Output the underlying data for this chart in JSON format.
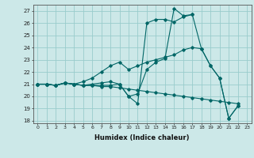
{
  "xlabel": "Humidex (Indice chaleur)",
  "bg_color": "#cce8e8",
  "grid_color": "#99cccc",
  "line_color": "#006666",
  "xlim": [
    -0.5,
    23.5
  ],
  "ylim": [
    17.8,
    27.5
  ],
  "xticks": [
    0,
    1,
    2,
    3,
    4,
    5,
    6,
    7,
    8,
    9,
    10,
    11,
    12,
    13,
    14,
    15,
    16,
    17,
    18,
    19,
    20,
    21,
    22,
    23
  ],
  "yticks": [
    18,
    19,
    20,
    21,
    22,
    23,
    24,
    25,
    26,
    27
  ],
  "series": [
    [
      21.0,
      21.0,
      20.9,
      21.1,
      21.0,
      20.9,
      20.9,
      20.9,
      20.9,
      21.0,
      20.0,
      19.4,
      26.0,
      26.3,
      26.3,
      26.1,
      26.5,
      26.7,
      23.9,
      22.5,
      21.5,
      18.2,
      19.2,
      null
    ],
    [
      21.0,
      21.0,
      20.9,
      21.1,
      21.0,
      21.2,
      21.5,
      22.0,
      22.5,
      22.8,
      22.2,
      22.5,
      22.8,
      23.0,
      23.2,
      23.4,
      23.8,
      24.0,
      23.9,
      22.5,
      21.5,
      18.2,
      19.2,
      null
    ],
    [
      21.0,
      21.0,
      20.9,
      21.1,
      21.0,
      20.9,
      21.0,
      21.1,
      21.2,
      21.0,
      20.0,
      20.2,
      22.2,
      22.8,
      23.1,
      27.2,
      26.6,
      26.7,
      null,
      null,
      null,
      null,
      null,
      null
    ],
    [
      21.0,
      21.0,
      20.9,
      21.1,
      21.0,
      20.9,
      20.9,
      20.8,
      20.8,
      20.7,
      20.6,
      20.5,
      20.4,
      20.3,
      20.2,
      20.1,
      20.0,
      19.9,
      19.8,
      19.7,
      19.6,
      19.5,
      19.4,
      null
    ]
  ]
}
